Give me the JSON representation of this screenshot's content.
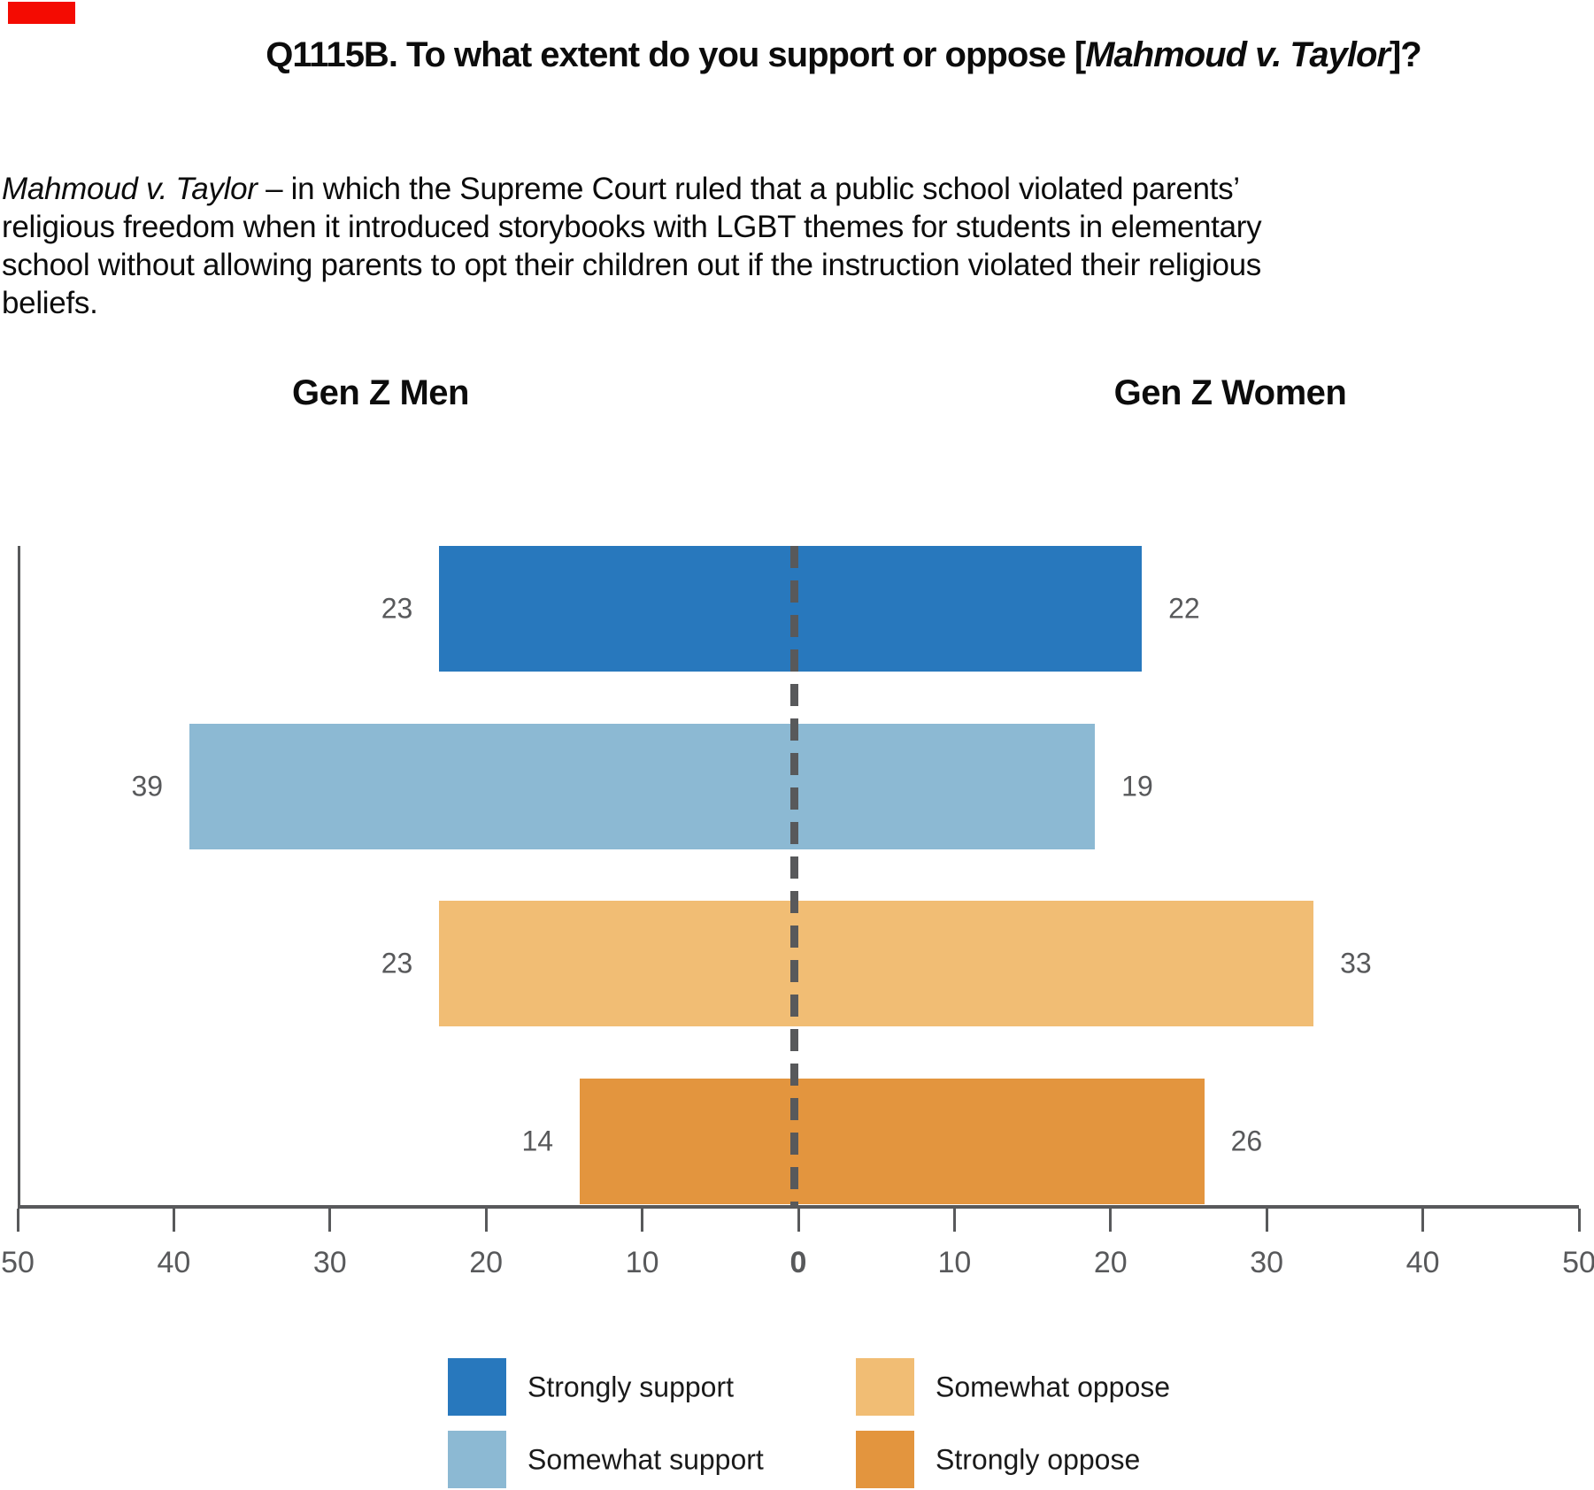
{
  "header": {
    "red_mark_color": "#f40b02",
    "title_prefix": "Q1115B. To what extent do you support or oppose [",
    "title_case_name": "Mahmoud v. Taylor",
    "title_suffix": "]?"
  },
  "description": {
    "case_name": "Mahmoud v. Taylor",
    "line1_rest": " – in which the Supreme Court ruled that a public school violated parents’",
    "line2": "religious freedom when it introduced storybooks with LGBT themes for students in elementary",
    "line3": "school without allowing parents to opt their children out if the instruction violated their religious",
    "line4": "beliefs."
  },
  "chart_data": {
    "type": "bar",
    "variant": "diverging-butterfly",
    "left_group": "Gen Z Men",
    "right_group": "Gen Z Women",
    "categories": [
      "Strongly support",
      "Somewhat support",
      "Somewhat oppose",
      "Strongly oppose"
    ],
    "series": [
      {
        "name": "Gen Z Men",
        "side": "left",
        "values": [
          23,
          39,
          23,
          14
        ]
      },
      {
        "name": "Gen Z Women",
        "side": "right",
        "values": [
          22,
          19,
          33,
          26
        ]
      }
    ],
    "colors": [
      "#2878BD",
      "#8CB9D3",
      "#F1BD74",
      "#E3953E"
    ],
    "axis": {
      "tick_labels": [
        "50",
        "40",
        "30",
        "20",
        "10",
        "0",
        "10",
        "20",
        "30",
        "40",
        "50"
      ],
      "max": 50,
      "center_line": "dashed-at-zero",
      "line_color": "#58595B"
    },
    "legend": [
      {
        "label": "Strongly support",
        "color": "#2878BD"
      },
      {
        "label": "Somewhat support",
        "color": "#8CB9D3"
      },
      {
        "label": "Somewhat oppose",
        "color": "#F1BD74"
      },
      {
        "label": "Strongly oppose",
        "color": "#E3953E"
      }
    ]
  }
}
